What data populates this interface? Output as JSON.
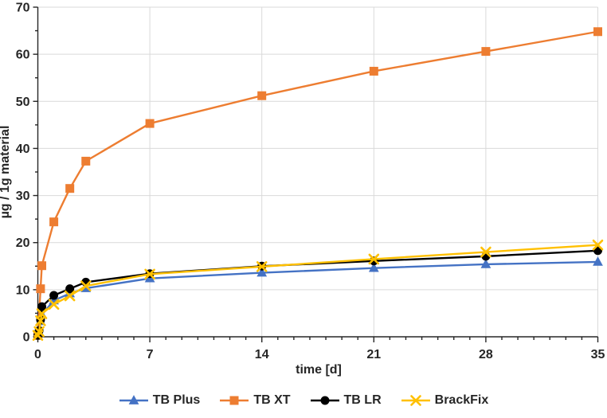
{
  "chart_data": {
    "type": "line",
    "title": "",
    "xlabel": "time [d]",
    "ylabel": "µg / 1g material",
    "xlim": [
      0,
      35
    ],
    "ylim": [
      0,
      70
    ],
    "x_major_ticks": [
      0,
      7,
      14,
      21,
      28,
      35
    ],
    "x_minor_step": 1,
    "y_major_ticks": [
      0,
      10,
      20,
      30,
      40,
      50,
      60,
      70
    ],
    "y_minor_step": 5,
    "grid": true,
    "legend_position": "bottom",
    "colors": {
      "grid": "#D9D9D9",
      "axis": "#262626",
      "text": "#262626",
      "background": "#FFFFFF"
    },
    "series": [
      {
        "name": "TB Plus",
        "marker": "triangle",
        "color": "#4472C4",
        "x": [
          0,
          0.08,
          0.17,
          0.25,
          1,
          2,
          3,
          7,
          14,
          21,
          28,
          35
        ],
        "y": [
          0.2,
          1.0,
          3.3,
          4.7,
          7.7,
          9.2,
          10.3,
          12.4,
          13.6,
          14.6,
          15.4,
          15.9
        ]
      },
      {
        "name": "TB XT",
        "marker": "square",
        "color": "#ED7D31",
        "x": [
          0,
          0.17,
          0.25,
          1,
          2,
          3,
          7,
          14,
          21,
          28,
          35
        ],
        "y": [
          0.3,
          10.2,
          15.1,
          24.4,
          31.5,
          37.3,
          45.3,
          51.2,
          56.4,
          60.6,
          64.8
        ]
      },
      {
        "name": "TB LR",
        "marker": "circle",
        "color": "#000000",
        "x": [
          0,
          0.08,
          0.17,
          0.25,
          1,
          2,
          3,
          7,
          14,
          21,
          28,
          35
        ],
        "y": [
          0.3,
          1.3,
          3.6,
          6.4,
          8.8,
          10.2,
          11.6,
          13.4,
          15.0,
          16.1,
          17.1,
          18.3
        ]
      },
      {
        "name": "BrackFix",
        "marker": "x",
        "color": "#FFC000",
        "x": [
          0,
          0.08,
          0.17,
          0.25,
          1,
          2,
          3,
          7,
          14,
          21,
          28,
          35
        ],
        "y": [
          0.3,
          1.1,
          3.4,
          4.9,
          6.9,
          8.7,
          10.8,
          13.3,
          14.9,
          16.5,
          18.0,
          19.5
        ]
      }
    ]
  }
}
